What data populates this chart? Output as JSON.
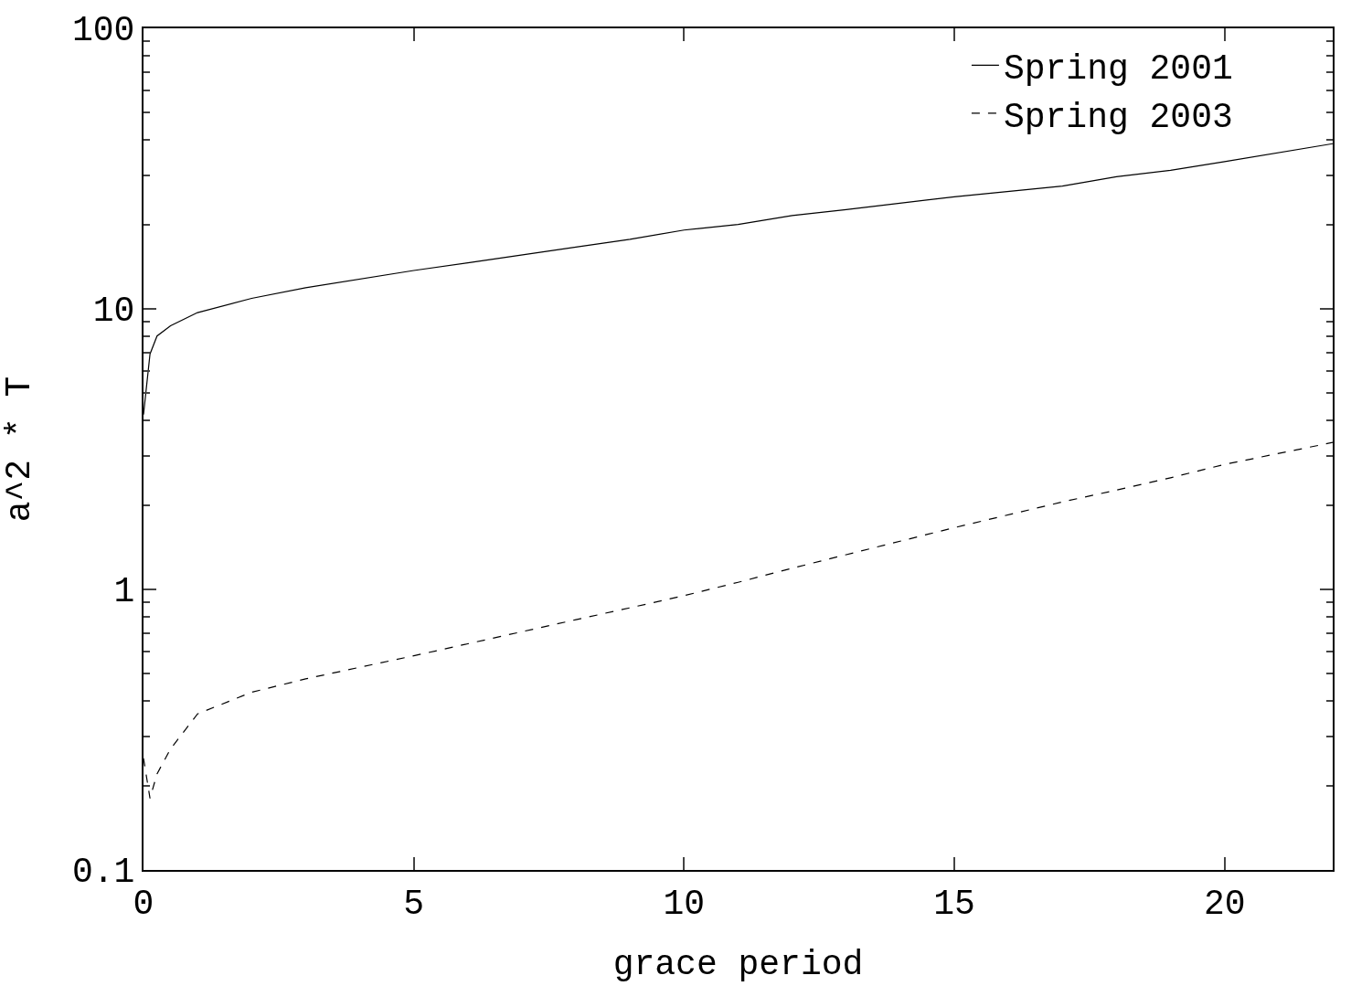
{
  "chart_data": {
    "type": "line",
    "xlabel": "grace period",
    "ylabel": "a^2 * T",
    "x": [
      0,
      0.12,
      0.25,
      0.5,
      1,
      2,
      3,
      5,
      6,
      8,
      9,
      10,
      11,
      12,
      13,
      15,
      17,
      18,
      19,
      20,
      22
    ],
    "series": [
      {
        "name": "Spring 2001",
        "color": "#000000",
        "line_style": "solid",
        "values": [
          4.2,
          6.9,
          8.0,
          8.7,
          9.7,
          10.9,
          11.9,
          13.7,
          14.6,
          16.6,
          17.7,
          19.1,
          20.0,
          21.5,
          22.6,
          25.1,
          27.4,
          29.6,
          31.2,
          33.5,
          38.8
        ]
      },
      {
        "name": "Spring 2003",
        "color": "#000000",
        "line_style": "dashed",
        "values": [
          0.25,
          0.18,
          0.22,
          0.27,
          0.36,
          0.43,
          0.48,
          0.58,
          0.64,
          0.78,
          0.86,
          0.95,
          1.06,
          1.19,
          1.33,
          1.66,
          2.05,
          2.26,
          2.5,
          2.79,
          3.34
        ]
      }
    ],
    "xlim": [
      0,
      22
    ],
    "ylim": [
      0.1,
      100
    ],
    "xticks": [
      0,
      5,
      10,
      15,
      20
    ],
    "yticks": [
      0.1,
      1,
      10,
      100
    ],
    "log": "y",
    "legend": "top right",
    "marker": "none"
  }
}
